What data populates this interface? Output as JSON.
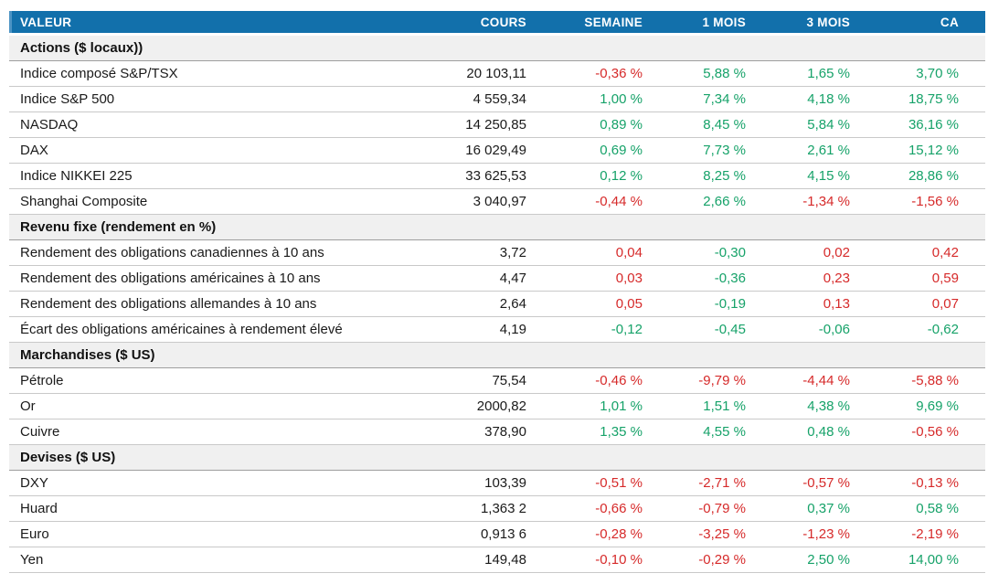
{
  "table": {
    "columns": [
      "VALEUR",
      "COURS",
      "SEMAINE",
      "1 MOIS",
      "3 MOIS",
      "CA"
    ],
    "colors": {
      "header_bg": "#1270ab",
      "header_text": "#ffffff",
      "positive_green": "#16a269",
      "negative_red": "#d62a2a",
      "section_bg": "#f0f0f0",
      "row_border": "#c9c9c9",
      "section_border": "#9e9e9e",
      "text": "#1a1a1a"
    },
    "sections": [
      {
        "label": "Actions ($ locaux))",
        "rows": [
          {
            "label": "Indice composé S&P/TSX",
            "cours": "20 103,11",
            "changes": [
              {
                "text": "-0,36 %",
                "color": "red"
              },
              {
                "text": "5,88 %",
                "color": "green"
              },
              {
                "text": "1,65 %",
                "color": "green"
              },
              {
                "text": "3,70 %",
                "color": "green"
              }
            ]
          },
          {
            "label": "Indice S&P 500",
            "cours": "4 559,34",
            "changes": [
              {
                "text": "1,00 %",
                "color": "green"
              },
              {
                "text": "7,34 %",
                "color": "green"
              },
              {
                "text": "4,18 %",
                "color": "green"
              },
              {
                "text": "18,75 %",
                "color": "green"
              }
            ]
          },
          {
            "label": "NASDAQ",
            "cours": "14 250,85",
            "changes": [
              {
                "text": "0,89 %",
                "color": "green"
              },
              {
                "text": "8,45 %",
                "color": "green"
              },
              {
                "text": "5,84 %",
                "color": "green"
              },
              {
                "text": "36,16 %",
                "color": "green"
              }
            ]
          },
          {
            "label": "DAX",
            "cours": "16 029,49",
            "changes": [
              {
                "text": "0,69 %",
                "color": "green"
              },
              {
                "text": "7,73 %",
                "color": "green"
              },
              {
                "text": "2,61 %",
                "color": "green"
              },
              {
                "text": "15,12 %",
                "color": "green"
              }
            ]
          },
          {
            "label": "Indice NIKKEI 225",
            "cours": "33 625,53",
            "changes": [
              {
                "text": "0,12 %",
                "color": "green"
              },
              {
                "text": "8,25 %",
                "color": "green"
              },
              {
                "text": "4,15 %",
                "color": "green"
              },
              {
                "text": "28,86 %",
                "color": "green"
              }
            ]
          },
          {
            "label": "Shanghai Composite",
            "cours": "3 040,97",
            "changes": [
              {
                "text": "-0,44 %",
                "color": "red"
              },
              {
                "text": "2,66 %",
                "color": "green"
              },
              {
                "text": "-1,34 %",
                "color": "red"
              },
              {
                "text": "-1,56 %",
                "color": "red"
              }
            ]
          }
        ]
      },
      {
        "label": "Revenu fixe (rendement en %)",
        "rows": [
          {
            "label": "Rendement des obligations canadiennes à 10 ans",
            "cours": "3,72",
            "changes": [
              {
                "text": "0,04",
                "color": "red"
              },
              {
                "text": "-0,30",
                "color": "green"
              },
              {
                "text": "0,02",
                "color": "red"
              },
              {
                "text": "0,42",
                "color": "red"
              }
            ]
          },
          {
            "label": "Rendement des obligations américaines à 10 ans",
            "cours": "4,47",
            "changes": [
              {
                "text": "0,03",
                "color": "red"
              },
              {
                "text": "-0,36",
                "color": "green"
              },
              {
                "text": "0,23",
                "color": "red"
              },
              {
                "text": "0,59",
                "color": "red"
              }
            ]
          },
          {
            "label": "Rendement des obligations allemandes à 10 ans",
            "cours": "2,64",
            "changes": [
              {
                "text": "0,05",
                "color": "red"
              },
              {
                "text": "-0,19",
                "color": "green"
              },
              {
                "text": "0,13",
                "color": "red"
              },
              {
                "text": "0,07",
                "color": "red"
              }
            ]
          },
          {
            "label": "Écart des obligations américaines à rendement élevé",
            "cours": "4,19",
            "changes": [
              {
                "text": "-0,12",
                "color": "green"
              },
              {
                "text": "-0,45",
                "color": "green"
              },
              {
                "text": "-0,06",
                "color": "green"
              },
              {
                "text": "-0,62",
                "color": "green"
              }
            ]
          }
        ]
      },
      {
        "label": "Marchandises ($ US)",
        "rows": [
          {
            "label": "Pétrole",
            "cours": "75,54",
            "changes": [
              {
                "text": "-0,46 %",
                "color": "red"
              },
              {
                "text": "-9,79 %",
                "color": "red"
              },
              {
                "text": "-4,44 %",
                "color": "red"
              },
              {
                "text": "-5,88 %",
                "color": "red"
              }
            ]
          },
          {
            "label": "Or",
            "cours": "2000,82",
            "changes": [
              {
                "text": "1,01 %",
                "color": "green"
              },
              {
                "text": "1,51 %",
                "color": "green"
              },
              {
                "text": "4,38 %",
                "color": "green"
              },
              {
                "text": "9,69 %",
                "color": "green"
              }
            ]
          },
          {
            "label": "Cuivre",
            "cours": "378,90",
            "changes": [
              {
                "text": "1,35 %",
                "color": "green"
              },
              {
                "text": "4,55 %",
                "color": "green"
              },
              {
                "text": "0,48 %",
                "color": "green"
              },
              {
                "text": "-0,56 %",
                "color": "red"
              }
            ]
          }
        ]
      },
      {
        "label": "Devises ($ US)",
        "rows": [
          {
            "label": "DXY",
            "cours": "103,39",
            "changes": [
              {
                "text": "-0,51 %",
                "color": "red"
              },
              {
                "text": "-2,71 %",
                "color": "red"
              },
              {
                "text": "-0,57 %",
                "color": "red"
              },
              {
                "text": "-0,13 %",
                "color": "red"
              }
            ]
          },
          {
            "label": "Huard",
            "cours": "1,363 2",
            "changes": [
              {
                "text": "-0,66 %",
                "color": "red"
              },
              {
                "text": "-0,79 %",
                "color": "red"
              },
              {
                "text": "0,37 %",
                "color": "green"
              },
              {
                "text": "0,58 %",
                "color": "green"
              }
            ]
          },
          {
            "label": "Euro",
            "cours": "0,913 6",
            "changes": [
              {
                "text": "-0,28 %",
                "color": "red"
              },
              {
                "text": "-3,25 %",
                "color": "red"
              },
              {
                "text": "-1,23 %",
                "color": "red"
              },
              {
                "text": "-2,19 %",
                "color": "red"
              }
            ]
          },
          {
            "label": "Yen",
            "cours": "149,48",
            "changes": [
              {
                "text": "-0,10 %",
                "color": "red"
              },
              {
                "text": "-0,29 %",
                "color": "red"
              },
              {
                "text": "2,50 %",
                "color": "green"
              },
              {
                "text": "14,00 %",
                "color": "green"
              }
            ]
          }
        ]
      }
    ]
  }
}
